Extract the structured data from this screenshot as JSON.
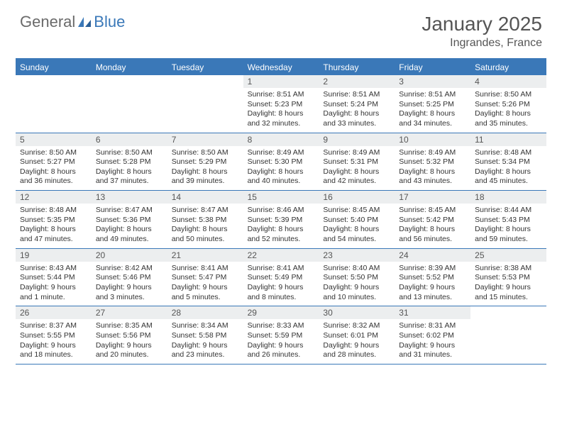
{
  "logo": {
    "part1": "General",
    "part2": "Blue"
  },
  "title": "January 2025",
  "location": "Ingrandes, France",
  "colors": {
    "header_bg": "#3a78b8",
    "header_text": "#ffffff",
    "daynum_bg": "#eceeef",
    "daynum_text": "#555555",
    "body_text": "#333333",
    "title_text": "#555555",
    "logo_gray": "#6a6a6a",
    "logo_blue": "#3a78b8",
    "border": "#3a78b8",
    "background": "#ffffff"
  },
  "day_labels": [
    "Sunday",
    "Monday",
    "Tuesday",
    "Wednesday",
    "Thursday",
    "Friday",
    "Saturday"
  ],
  "weeks": [
    [
      {
        "n": "",
        "sr": "",
        "ss": "",
        "d1": "",
        "d2": ""
      },
      {
        "n": "",
        "sr": "",
        "ss": "",
        "d1": "",
        "d2": ""
      },
      {
        "n": "",
        "sr": "",
        "ss": "",
        "d1": "",
        "d2": ""
      },
      {
        "n": "1",
        "sr": "Sunrise: 8:51 AM",
        "ss": "Sunset: 5:23 PM",
        "d1": "Daylight: 8 hours",
        "d2": "and 32 minutes."
      },
      {
        "n": "2",
        "sr": "Sunrise: 8:51 AM",
        "ss": "Sunset: 5:24 PM",
        "d1": "Daylight: 8 hours",
        "d2": "and 33 minutes."
      },
      {
        "n": "3",
        "sr": "Sunrise: 8:51 AM",
        "ss": "Sunset: 5:25 PM",
        "d1": "Daylight: 8 hours",
        "d2": "and 34 minutes."
      },
      {
        "n": "4",
        "sr": "Sunrise: 8:50 AM",
        "ss": "Sunset: 5:26 PM",
        "d1": "Daylight: 8 hours",
        "d2": "and 35 minutes."
      }
    ],
    [
      {
        "n": "5",
        "sr": "Sunrise: 8:50 AM",
        "ss": "Sunset: 5:27 PM",
        "d1": "Daylight: 8 hours",
        "d2": "and 36 minutes."
      },
      {
        "n": "6",
        "sr": "Sunrise: 8:50 AM",
        "ss": "Sunset: 5:28 PM",
        "d1": "Daylight: 8 hours",
        "d2": "and 37 minutes."
      },
      {
        "n": "7",
        "sr": "Sunrise: 8:50 AM",
        "ss": "Sunset: 5:29 PM",
        "d1": "Daylight: 8 hours",
        "d2": "and 39 minutes."
      },
      {
        "n": "8",
        "sr": "Sunrise: 8:49 AM",
        "ss": "Sunset: 5:30 PM",
        "d1": "Daylight: 8 hours",
        "d2": "and 40 minutes."
      },
      {
        "n": "9",
        "sr": "Sunrise: 8:49 AM",
        "ss": "Sunset: 5:31 PM",
        "d1": "Daylight: 8 hours",
        "d2": "and 42 minutes."
      },
      {
        "n": "10",
        "sr": "Sunrise: 8:49 AM",
        "ss": "Sunset: 5:32 PM",
        "d1": "Daylight: 8 hours",
        "d2": "and 43 minutes."
      },
      {
        "n": "11",
        "sr": "Sunrise: 8:48 AM",
        "ss": "Sunset: 5:34 PM",
        "d1": "Daylight: 8 hours",
        "d2": "and 45 minutes."
      }
    ],
    [
      {
        "n": "12",
        "sr": "Sunrise: 8:48 AM",
        "ss": "Sunset: 5:35 PM",
        "d1": "Daylight: 8 hours",
        "d2": "and 47 minutes."
      },
      {
        "n": "13",
        "sr": "Sunrise: 8:47 AM",
        "ss": "Sunset: 5:36 PM",
        "d1": "Daylight: 8 hours",
        "d2": "and 49 minutes."
      },
      {
        "n": "14",
        "sr": "Sunrise: 8:47 AM",
        "ss": "Sunset: 5:38 PM",
        "d1": "Daylight: 8 hours",
        "d2": "and 50 minutes."
      },
      {
        "n": "15",
        "sr": "Sunrise: 8:46 AM",
        "ss": "Sunset: 5:39 PM",
        "d1": "Daylight: 8 hours",
        "d2": "and 52 minutes."
      },
      {
        "n": "16",
        "sr": "Sunrise: 8:45 AM",
        "ss": "Sunset: 5:40 PM",
        "d1": "Daylight: 8 hours",
        "d2": "and 54 minutes."
      },
      {
        "n": "17",
        "sr": "Sunrise: 8:45 AM",
        "ss": "Sunset: 5:42 PM",
        "d1": "Daylight: 8 hours",
        "d2": "and 56 minutes."
      },
      {
        "n": "18",
        "sr": "Sunrise: 8:44 AM",
        "ss": "Sunset: 5:43 PM",
        "d1": "Daylight: 8 hours",
        "d2": "and 59 minutes."
      }
    ],
    [
      {
        "n": "19",
        "sr": "Sunrise: 8:43 AM",
        "ss": "Sunset: 5:44 PM",
        "d1": "Daylight: 9 hours",
        "d2": "and 1 minute."
      },
      {
        "n": "20",
        "sr": "Sunrise: 8:42 AM",
        "ss": "Sunset: 5:46 PM",
        "d1": "Daylight: 9 hours",
        "d2": "and 3 minutes."
      },
      {
        "n": "21",
        "sr": "Sunrise: 8:41 AM",
        "ss": "Sunset: 5:47 PM",
        "d1": "Daylight: 9 hours",
        "d2": "and 5 minutes."
      },
      {
        "n": "22",
        "sr": "Sunrise: 8:41 AM",
        "ss": "Sunset: 5:49 PM",
        "d1": "Daylight: 9 hours",
        "d2": "and 8 minutes."
      },
      {
        "n": "23",
        "sr": "Sunrise: 8:40 AM",
        "ss": "Sunset: 5:50 PM",
        "d1": "Daylight: 9 hours",
        "d2": "and 10 minutes."
      },
      {
        "n": "24",
        "sr": "Sunrise: 8:39 AM",
        "ss": "Sunset: 5:52 PM",
        "d1": "Daylight: 9 hours",
        "d2": "and 13 minutes."
      },
      {
        "n": "25",
        "sr": "Sunrise: 8:38 AM",
        "ss": "Sunset: 5:53 PM",
        "d1": "Daylight: 9 hours",
        "d2": "and 15 minutes."
      }
    ],
    [
      {
        "n": "26",
        "sr": "Sunrise: 8:37 AM",
        "ss": "Sunset: 5:55 PM",
        "d1": "Daylight: 9 hours",
        "d2": "and 18 minutes."
      },
      {
        "n": "27",
        "sr": "Sunrise: 8:35 AM",
        "ss": "Sunset: 5:56 PM",
        "d1": "Daylight: 9 hours",
        "d2": "and 20 minutes."
      },
      {
        "n": "28",
        "sr": "Sunrise: 8:34 AM",
        "ss": "Sunset: 5:58 PM",
        "d1": "Daylight: 9 hours",
        "d2": "and 23 minutes."
      },
      {
        "n": "29",
        "sr": "Sunrise: 8:33 AM",
        "ss": "Sunset: 5:59 PM",
        "d1": "Daylight: 9 hours",
        "d2": "and 26 minutes."
      },
      {
        "n": "30",
        "sr": "Sunrise: 8:32 AM",
        "ss": "Sunset: 6:01 PM",
        "d1": "Daylight: 9 hours",
        "d2": "and 28 minutes."
      },
      {
        "n": "31",
        "sr": "Sunrise: 8:31 AM",
        "ss": "Sunset: 6:02 PM",
        "d1": "Daylight: 9 hours",
        "d2": "and 31 minutes."
      },
      {
        "n": "",
        "sr": "",
        "ss": "",
        "d1": "",
        "d2": ""
      }
    ]
  ]
}
